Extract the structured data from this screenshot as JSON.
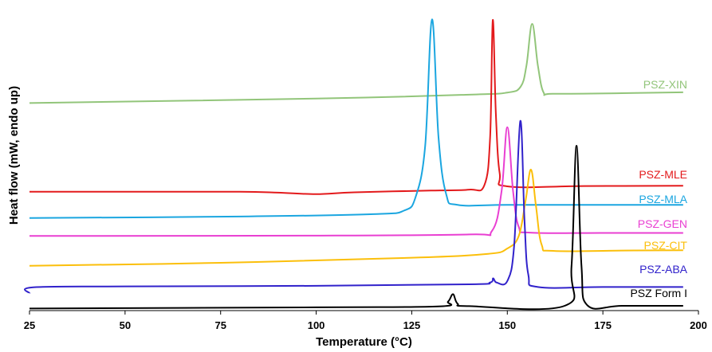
{
  "chart_data": {
    "type": "line",
    "title": "",
    "xlabel": "Temperature (°C)",
    "ylabel": "Heat flow (mW, endo up)",
    "xlim": [
      25,
      200
    ],
    "ylim": [
      0,
      100
    ],
    "x_ticks": [
      25,
      50,
      75,
      100,
      125,
      150,
      175,
      200
    ],
    "x_tick_labels": [
      "25",
      "50",
      "75",
      "100",
      "125",
      "150",
      "175",
      "200"
    ],
    "y_ticks_shown": false,
    "grid": false,
    "legend": "inline-right",
    "series": [
      {
        "name": "PSZ-XIN",
        "color": "#92C57A",
        "points": [
          [
            25,
            69.5
          ],
          [
            100,
            71
          ],
          [
            140,
            72.3
          ],
          [
            150,
            73
          ],
          [
            153.5,
            75
          ],
          [
            155,
            82
          ],
          [
            156.5,
            96
          ],
          [
            158,
            82
          ],
          [
            159.5,
            73
          ],
          [
            162,
            72.6
          ],
          [
            180,
            72.8
          ],
          [
            196,
            73.1
          ]
        ]
      },
      {
        "name": "PSZ-MLE",
        "color": "#E31A1C",
        "points": [
          [
            25,
            39.8
          ],
          [
            60,
            39.8
          ],
          [
            80,
            39.8
          ],
          [
            90,
            39.5
          ],
          [
            100,
            39
          ],
          [
            110,
            39.6
          ],
          [
            130,
            40.2
          ],
          [
            140,
            40.5
          ],
          [
            144,
            42
          ],
          [
            145.5,
            58
          ],
          [
            146.2,
            97.3
          ],
          [
            147,
            66
          ],
          [
            148,
            46
          ],
          [
            150,
            41.6
          ],
          [
            170,
            41.7
          ],
          [
            196,
            41.8
          ]
        ]
      },
      {
        "name": "PSZ-MLA",
        "color": "#1BA6E0",
        "points": [
          [
            25,
            31
          ],
          [
            80,
            31.5
          ],
          [
            115,
            32.3
          ],
          [
            123,
            33.5
          ],
          [
            126,
            38
          ],
          [
            128.5,
            55
          ],
          [
            130.3,
            97.5
          ],
          [
            132,
            58
          ],
          [
            134,
            39
          ],
          [
            137,
            35.4
          ],
          [
            150,
            35.4
          ],
          [
            175,
            35.4
          ],
          [
            196,
            35.4
          ]
        ]
      },
      {
        "name": "PSZ-GEN",
        "color": "#E93FD2",
        "points": [
          [
            25,
            25
          ],
          [
            100,
            25.1
          ],
          [
            140,
            25.5
          ],
          [
            146,
            26.7
          ],
          [
            148.5,
            40
          ],
          [
            150,
            61.4
          ],
          [
            151.5,
            40
          ],
          [
            153,
            28
          ],
          [
            156,
            26.1
          ],
          [
            175,
            26
          ],
          [
            196,
            26
          ]
        ]
      },
      {
        "name": "PSZ-CIT",
        "color": "#FBBF0B",
        "points": [
          [
            25,
            15
          ],
          [
            75,
            16
          ],
          [
            125,
            17.7
          ],
          [
            145,
            19
          ],
          [
            150,
            20.8
          ],
          [
            153,
            25
          ],
          [
            154.8,
            37
          ],
          [
            156.2,
            47.2
          ],
          [
            157.5,
            35
          ],
          [
            159,
            22
          ],
          [
            162,
            20
          ],
          [
            180,
            20.1
          ],
          [
            196,
            20.2
          ]
        ]
      },
      {
        "name": "PSZ-ABA",
        "color": "#3122CB",
        "points": [
          [
            25,
            5.8
          ],
          [
            26,
            7.8
          ],
          [
            50,
            8.1
          ],
          [
            100,
            8.3
          ],
          [
            140,
            8.8
          ],
          [
            145.5,
            9.4
          ],
          [
            146.3,
            10.8
          ],
          [
            147.2,
            9.4
          ],
          [
            150,
            9.9
          ],
          [
            151.8,
            22
          ],
          [
            153.4,
            63.5
          ],
          [
            154.5,
            30
          ],
          [
            155.5,
            12
          ],
          [
            158,
            7.9
          ],
          [
            175,
            7.9
          ],
          [
            196,
            7.9
          ]
        ]
      },
      {
        "name": "PSZ Form I",
        "color": "#000000",
        "points": [
          [
            25,
            0.7
          ],
          [
            100,
            1.1
          ],
          [
            132,
            1.4
          ],
          [
            134.5,
            3
          ],
          [
            135.8,
            5.5
          ],
          [
            137,
            2.3
          ],
          [
            140,
            1.5
          ],
          [
            165,
            1.6
          ],
          [
            166.8,
            15
          ],
          [
            168.1,
            55.2
          ],
          [
            169.4,
            15
          ],
          [
            171,
            1.7
          ],
          [
            180,
            1.6
          ],
          [
            196,
            1.6
          ]
        ]
      }
    ]
  }
}
